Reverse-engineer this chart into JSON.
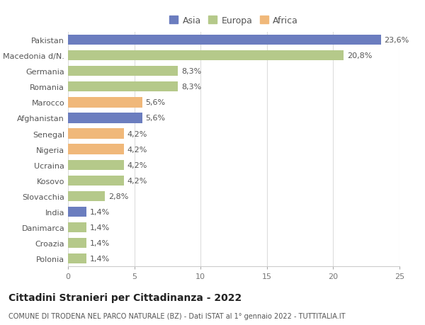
{
  "countries": [
    "Pakistan",
    "Macedonia d/N.",
    "Germania",
    "Romania",
    "Marocco",
    "Afghanistan",
    "Senegal",
    "Nigeria",
    "Ucraina",
    "Kosovo",
    "Slovacchia",
    "India",
    "Danimarca",
    "Croazia",
    "Polonia"
  ],
  "values": [
    23.6,
    20.8,
    8.3,
    8.3,
    5.6,
    5.6,
    4.2,
    4.2,
    4.2,
    4.2,
    2.8,
    1.4,
    1.4,
    1.4,
    1.4
  ],
  "labels": [
    "23,6%",
    "20,8%",
    "8,3%",
    "8,3%",
    "5,6%",
    "5,6%",
    "4,2%",
    "4,2%",
    "4,2%",
    "4,2%",
    "2,8%",
    "1,4%",
    "1,4%",
    "1,4%",
    "1,4%"
  ],
  "continents": [
    "Asia",
    "Europa",
    "Europa",
    "Europa",
    "Africa",
    "Asia",
    "Africa",
    "Africa",
    "Europa",
    "Europa",
    "Europa",
    "Asia",
    "Europa",
    "Europa",
    "Europa"
  ],
  "colors": {
    "Asia": "#6b7dbf",
    "Europa": "#b5c98a",
    "Africa": "#f0b87a"
  },
  "legend_labels": [
    "Asia",
    "Europa",
    "Africa"
  ],
  "legend_colors": [
    "#6b7dbf",
    "#b5c98a",
    "#f0b87a"
  ],
  "title": "Cittadini Stranieri per Cittadinanza - 2022",
  "subtitle": "COMUNE DI TRODENA NEL PARCO NATURALE (BZ) - Dati ISTAT al 1° gennaio 2022 - TUTTITALIA.IT",
  "xlim": [
    0,
    25
  ],
  "xticks": [
    0,
    5,
    10,
    15,
    20,
    25
  ],
  "background_color": "#ffffff",
  "grid_color": "#dddddd",
  "bar_height": 0.65,
  "label_fontsize": 8,
  "title_fontsize": 10,
  "subtitle_fontsize": 7,
  "tick_fontsize": 8,
  "legend_fontsize": 9
}
